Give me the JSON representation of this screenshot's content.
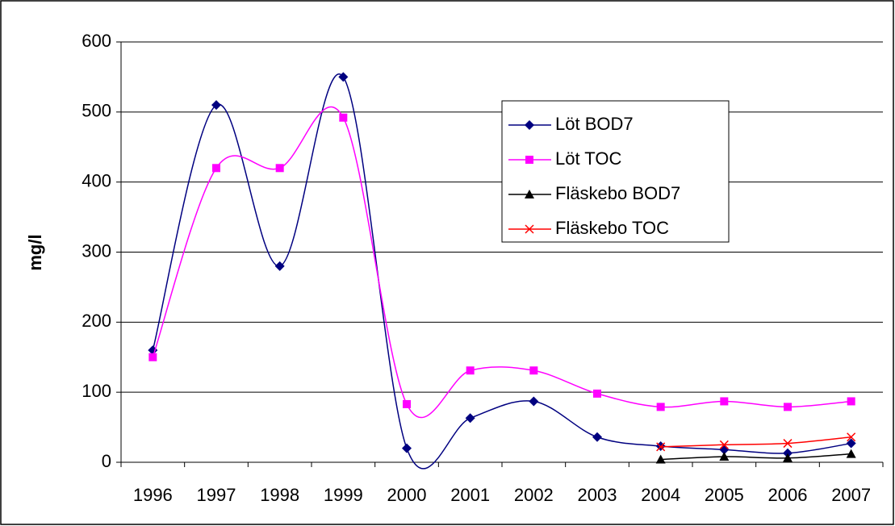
{
  "chart_data": {
    "type": "line",
    "smooth": true,
    "y_label": "mg/l",
    "categories": [
      "1996",
      "1997",
      "1998",
      "1999",
      "2000",
      "2001",
      "2002",
      "2003",
      "2004",
      "2005",
      "2006",
      "2007"
    ],
    "series": [
      {
        "name": "Löt BOD7",
        "color": "#000080",
        "marker": "diamond",
        "values": [
          160,
          510,
          280,
          550,
          20,
          63,
          87,
          36,
          23,
          18,
          13,
          27
        ]
      },
      {
        "name": "Löt TOC",
        "color": "#ff00ff",
        "marker": "square",
        "values": [
          150,
          420,
          420,
          492,
          83,
          131,
          131,
          98,
          79,
          87,
          79,
          87
        ]
      },
      {
        "name": "Fläskebo BOD7",
        "color": "#000000",
        "marker": "triangle",
        "values": [
          null,
          null,
          null,
          null,
          null,
          null,
          null,
          null,
          4,
          8,
          6,
          12
        ]
      },
      {
        "name": "Fläskebo TOC",
        "color": "#ff0000",
        "marker": "x",
        "values": [
          null,
          null,
          null,
          null,
          null,
          null,
          null,
          null,
          22,
          25,
          27,
          36
        ]
      }
    ],
    "ylim": [
      0,
      600
    ],
    "yticks": [
      0,
      100,
      200,
      300,
      400,
      500,
      600
    ],
    "grid": true,
    "legend": "upper right"
  }
}
